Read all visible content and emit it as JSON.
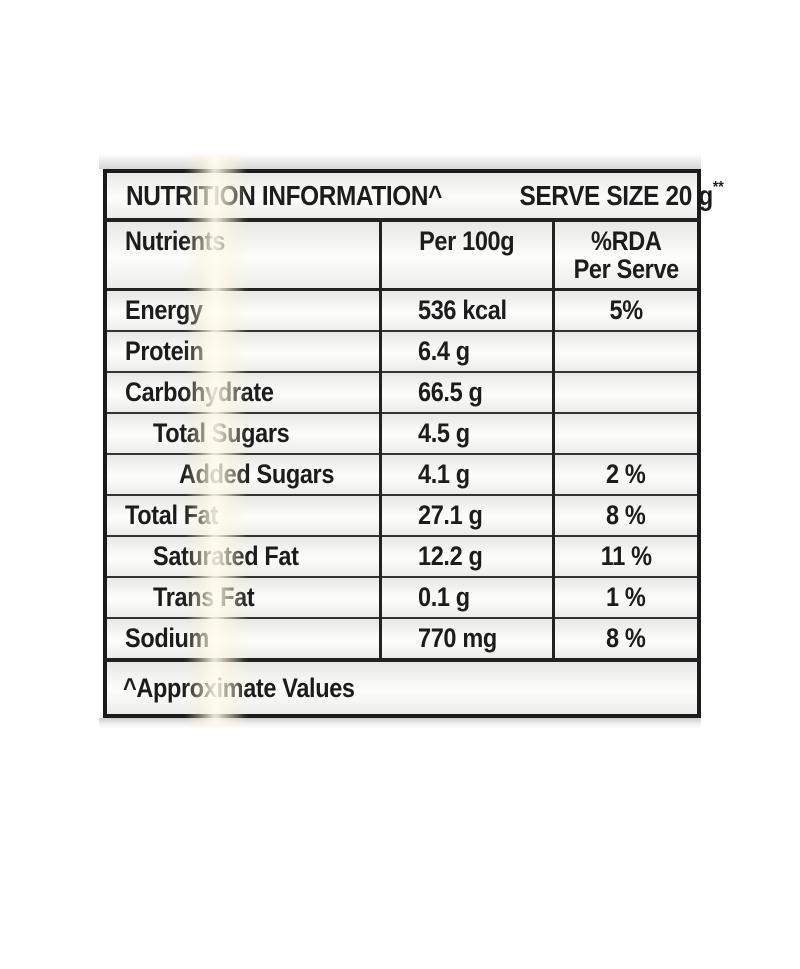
{
  "table": {
    "title": "NUTRITION INFORMATION^",
    "serve_size_text": "SERVE SIZE 20 g",
    "serve_size_asterisks": "**",
    "columns": {
      "nutrients": "Nutrients",
      "per100": "Per 100g",
      "rda_line1": "%RDA",
      "rda_line2": "Per Serve"
    },
    "rows": [
      {
        "label": "Energy",
        "indent": 0,
        "per100": "536 kcal",
        "rda": "5%"
      },
      {
        "label": "Protein",
        "indent": 0,
        "per100": "6.4 g",
        "rda": ""
      },
      {
        "label": "Carbohydrate",
        "indent": 0,
        "per100": "66.5 g",
        "rda": ""
      },
      {
        "label": "Total Sugars",
        "indent": 1,
        "per100": "4.5 g",
        "rda": ""
      },
      {
        "label": "Added Sugars",
        "indent": 2,
        "per100": "4.1 g",
        "rda": "2 %"
      },
      {
        "label": "Total Fat",
        "indent": 0,
        "per100": "27.1 g",
        "rda": "8 %"
      },
      {
        "label": "Saturated Fat",
        "indent": 1,
        "per100": "12.2 g",
        "rda": "11 %"
      },
      {
        "label": "Trans Fat",
        "indent": 1,
        "per100": "0.1 g",
        "rda": "1 %"
      },
      {
        "label": "Sodium",
        "indent": 0,
        "per100": "770 mg",
        "rda": "8 %"
      }
    ],
    "footnote": "^Approximate Values"
  },
  "colors": {
    "frame_border": "#1b1b1b",
    "text": "#1c1c1c",
    "label_bg_light": "#fdfdfc",
    "label_bg_dark": "#e7e7e5",
    "glare_warm": "#fcf6dc",
    "page_background": "#ffffff"
  }
}
